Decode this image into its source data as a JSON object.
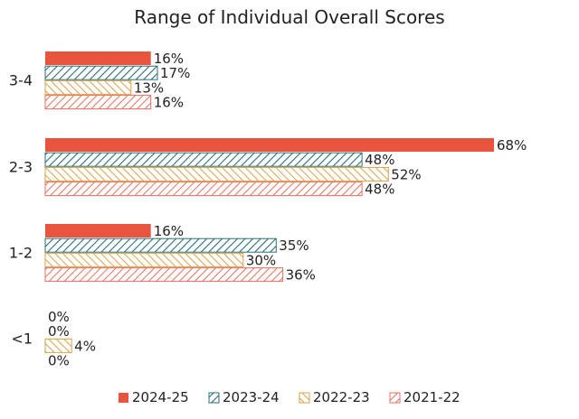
{
  "chart_data": {
    "type": "bar",
    "orientation": "horizontal",
    "title": "Range of Individual Overall Scores",
    "xlabel": "",
    "ylabel": "",
    "xlim": [
      0,
      68
    ],
    "value_suffix": "%",
    "grid": false,
    "legend_position": "bottom",
    "categories": [
      "3-4",
      "2-3",
      "1-2",
      "<1"
    ],
    "series": [
      {
        "name": "2024-25",
        "values": [
          16,
          68,
          16,
          0
        ],
        "color": "#e8553e",
        "fill": "solid"
      },
      {
        "name": "2023-24",
        "values": [
          17,
          48,
          35,
          0
        ],
        "color": "#2b6f78",
        "fill": "hatch-dark"
      },
      {
        "name": "2022-23",
        "values": [
          13,
          52,
          30,
          4
        ],
        "color": "#d8a24a",
        "fill": "hatch-gold"
      },
      {
        "name": "2021-22",
        "values": [
          16,
          48,
          36,
          0
        ],
        "color": "#ea6f5e",
        "fill": "hatch-red"
      }
    ]
  }
}
